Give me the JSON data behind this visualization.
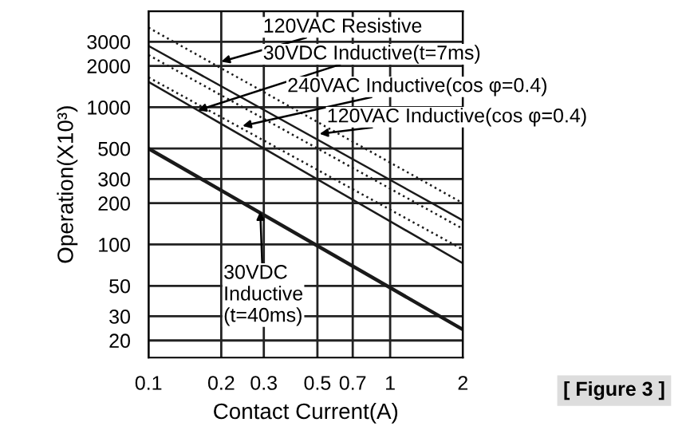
{
  "chart_data": {
    "type": "line",
    "xlabel": "Contact Current(A)",
    "ylabel": "Operation(X10³)",
    "x": [
      0.1,
      2
    ],
    "log": "xy",
    "xlim": [
      0.1,
      2
    ],
    "ylim": [
      15,
      5000
    ],
    "xticks": [
      0.1,
      0.2,
      0.3,
      0.5,
      0.7,
      1,
      2
    ],
    "yticks": [
      20,
      30,
      50,
      100,
      200,
      300,
      500,
      1000,
      2000,
      3000
    ],
    "grid": true,
    "marker": "none",
    "series": [
      {
        "color": "#1a1a1a",
        "line_style": "dotted",
        "values": [
          3800,
          200
        ]
      },
      {
        "color": "#1a1a1a",
        "line_style": "solid",
        "values": [
          2800,
          150
        ]
      },
      {
        "color": "#1a1a1a",
        "line_style": "dotted",
        "values": [
          2400,
          130
        ]
      },
      {
        "color": "#1a1a1a",
        "line_style": "dotted",
        "values": [
          1650,
          92
        ]
      },
      {
        "color": "#1a1a1a",
        "line_style": "solid",
        "values": [
          1530,
          73
        ]
      },
      {
        "color": "#1a1a1a",
        "line_style": "solid",
        "values": [
          500,
          24
        ]
      }
    ],
    "annotations": [
      {
        "text": "120VAC Resistive",
        "x": 0.2,
        "y": 2150
      },
      {
        "text": "30VDC Inductive(t=7ms)",
        "x": 0.16,
        "y": 950
      },
      {
        "text": "240VAC Inductive(cos φ=0.4)",
        "x": 0.245,
        "y": 730
      },
      {
        "text": "120VAC Inductive(cos φ=0.4)",
        "x": 0.51,
        "y": 640
      },
      {
        "text": "30VDC\nInductive\n(t=40ms)",
        "x": 0.29,
        "y": 174
      },
      "[ Figure 3 ]"
    ]
  }
}
